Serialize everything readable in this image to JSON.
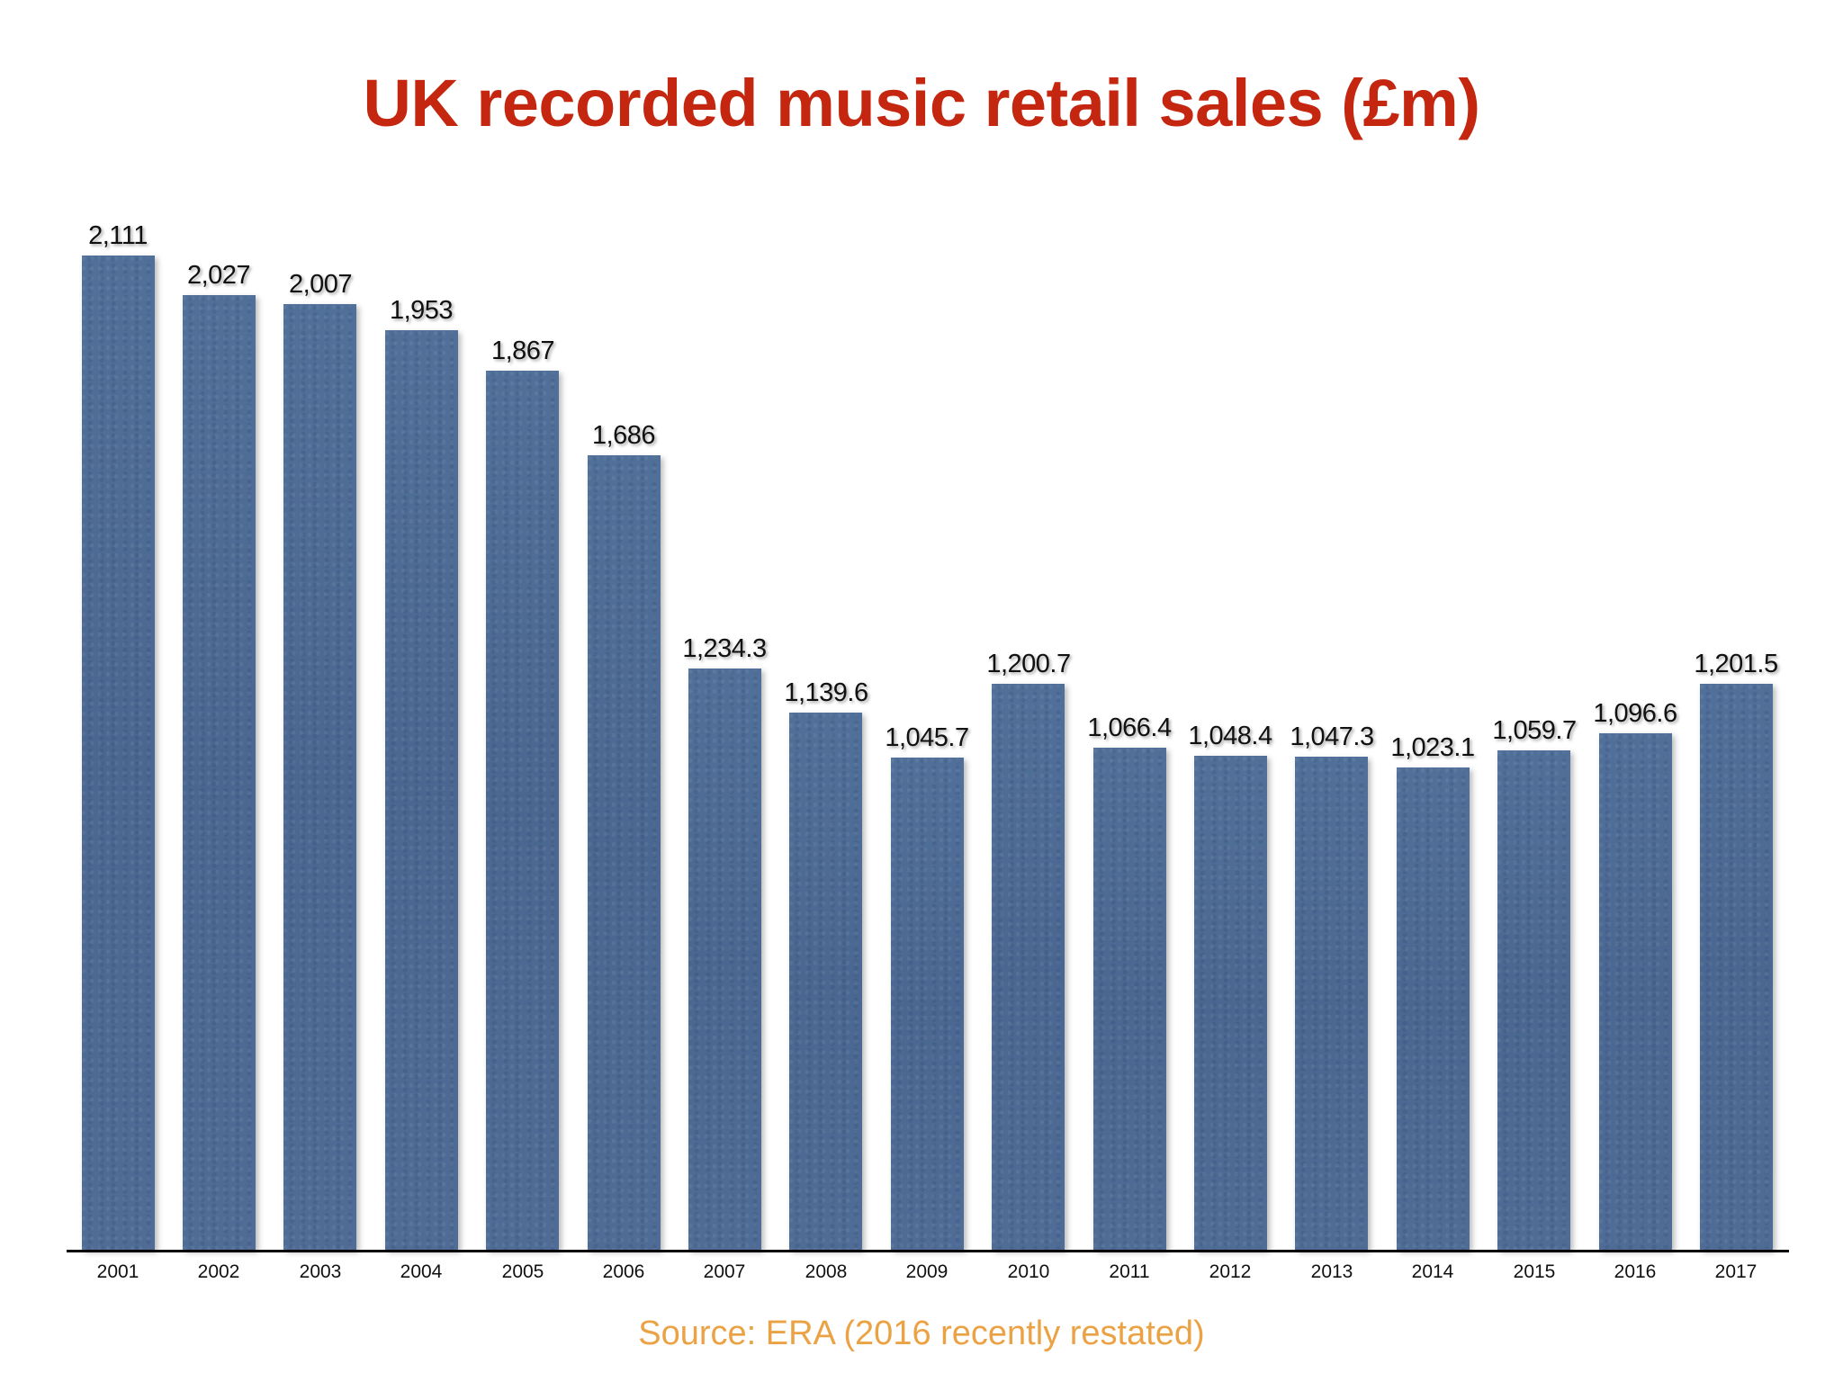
{
  "title": "UK recorded music retail sales (£m)",
  "source": "Source: ERA (2016 recently restated)",
  "colors": {
    "title": "#c4260f",
    "bar": "#4c6a93",
    "source": "#eba244",
    "axis": "#000000"
  },
  "chart_data": {
    "type": "bar",
    "title": "UK recorded music retail sales (£m)",
    "xlabel": "",
    "ylabel": "",
    "categories": [
      "2001",
      "2002",
      "2003",
      "2004",
      "2005",
      "2006",
      "2007",
      "2008",
      "2009",
      "2010",
      "2011",
      "2012",
      "2013",
      "2014",
      "2015",
      "2016",
      "2017"
    ],
    "values": [
      2111,
      2027,
      2007,
      1953,
      1867,
      1686,
      1234.3,
      1139.6,
      1045.7,
      1200.7,
      1066.4,
      1048.4,
      1047.3,
      1023.1,
      1059.7,
      1096.6,
      1201.5
    ],
    "value_labels": [
      "2,111",
      "2,027",
      "2,007",
      "1,953",
      "1,867",
      "1,686",
      "1,234.3",
      "1,139.6",
      "1,045.7",
      "1,200.7",
      "1,066.4",
      "1,048.4",
      "1,047.3",
      "1,023.1",
      "1,059.7",
      "1,096.6",
      "1,201.5"
    ],
    "ylim": [
      0,
      2111
    ],
    "grid": false,
    "legend": null,
    "y_axis_visible": false,
    "annotation": "Source: ERA (2016 recently restated)"
  }
}
